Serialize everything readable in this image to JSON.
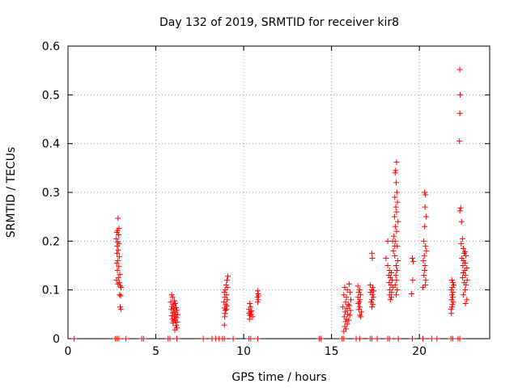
{
  "chart_data": {
    "type": "scatter",
    "title": "Day 132 of 2019, SRMTID for receiver kir8",
    "xlabel": "GPS time / hours",
    "ylabel": "SRMTID / TECUs",
    "xlim": [
      0,
      24
    ],
    "ylim": [
      0,
      0.6
    ],
    "xticks": [
      0,
      5,
      10,
      15,
      20
    ],
    "yticks": [
      0,
      0.1,
      0.2,
      0.3,
      0.4,
      0.5,
      0.6
    ],
    "xtick_labels": [
      "0",
      "5",
      "10",
      "15",
      "20"
    ],
    "ytick_labels": [
      "0",
      "0.1",
      "0.2",
      "0.3",
      "0.4",
      "0.5",
      "0.6"
    ],
    "grid": true,
    "marker": "+",
    "marker_color": "#ff0000",
    "series": [
      {
        "name": "SRMTID",
        "points": [
          [
            0.35,
            0
          ],
          [
            2.7,
            0
          ],
          [
            2.8,
            0
          ],
          [
            2.9,
            0
          ],
          [
            3.3,
            0
          ],
          [
            4.2,
            0
          ],
          [
            4.3,
            0
          ],
          [
            5.7,
            0
          ],
          [
            5.8,
            0
          ],
          [
            6.2,
            0
          ],
          [
            7.7,
            0
          ],
          [
            8.2,
            0
          ],
          [
            8.4,
            0
          ],
          [
            8.6,
            0
          ],
          [
            8.8,
            0
          ],
          [
            8.9,
            0
          ],
          [
            9.4,
            0
          ],
          [
            10.3,
            0
          ],
          [
            10.4,
            0
          ],
          [
            10.8,
            0
          ],
          [
            14.3,
            0
          ],
          [
            14.4,
            0
          ],
          [
            15.6,
            0
          ],
          [
            15.7,
            0
          ],
          [
            16.4,
            0
          ],
          [
            16.6,
            0
          ],
          [
            17.2,
            0
          ],
          [
            17.3,
            0
          ],
          [
            17.6,
            0
          ],
          [
            18.2,
            0
          ],
          [
            18.3,
            0
          ],
          [
            18.8,
            0
          ],
          [
            19.6,
            0
          ],
          [
            20.2,
            0
          ],
          [
            20.7,
            0
          ],
          [
            21.0,
            0
          ],
          [
            21.8,
            0
          ],
          [
            21.9,
            0
          ],
          [
            22.2,
            0
          ],
          [
            22.3,
            0
          ],
          [
            2.85,
            0.247
          ],
          [
            2.9,
            0.226
          ],
          [
            2.82,
            0.222
          ],
          [
            2.78,
            0.218
          ],
          [
            2.88,
            0.213
          ],
          [
            2.75,
            0.205
          ],
          [
            2.83,
            0.198
          ],
          [
            2.9,
            0.195
          ],
          [
            2.8,
            0.19
          ],
          [
            2.86,
            0.182
          ],
          [
            2.79,
            0.175
          ],
          [
            2.92,
            0.168
          ],
          [
            2.84,
            0.16
          ],
          [
            2.77,
            0.155
          ],
          [
            2.89,
            0.148
          ],
          [
            2.81,
            0.14
          ],
          [
            2.95,
            0.132
          ],
          [
            2.87,
            0.125
          ],
          [
            2.76,
            0.12
          ],
          [
            2.93,
            0.115
          ],
          [
            2.85,
            0.112
          ],
          [
            2.99,
            0.108
          ],
          [
            3.02,
            0.105
          ],
          [
            2.94,
            0.09
          ],
          [
            3.0,
            0.088
          ],
          [
            2.97,
            0.065
          ],
          [
            3.01,
            0.06
          ],
          [
            5.9,
            0.09
          ],
          [
            5.95,
            0.085
          ],
          [
            6.05,
            0.078
          ],
          [
            5.85,
            0.075
          ],
          [
            6.1,
            0.072
          ],
          [
            6.0,
            0.07
          ],
          [
            5.92,
            0.066
          ],
          [
            6.15,
            0.064
          ],
          [
            6.02,
            0.062
          ],
          [
            5.88,
            0.06
          ],
          [
            6.2,
            0.058
          ],
          [
            6.08,
            0.055
          ],
          [
            5.97,
            0.053
          ],
          [
            6.12,
            0.05
          ],
          [
            6.25,
            0.049
          ],
          [
            5.9,
            0.047
          ],
          [
            6.05,
            0.045
          ],
          [
            6.18,
            0.043
          ],
          [
            5.94,
            0.04
          ],
          [
            6.1,
            0.038
          ],
          [
            6.0,
            0.036
          ],
          [
            6.22,
            0.034
          ],
          [
            5.98,
            0.032
          ],
          [
            6.15,
            0.027
          ],
          [
            6.2,
            0.022
          ],
          [
            6.08,
            0.018
          ],
          [
            9.1,
            0.128
          ],
          [
            9.05,
            0.12
          ],
          [
            9.0,
            0.11
          ],
          [
            9.08,
            0.105
          ],
          [
            8.95,
            0.1
          ],
          [
            8.9,
            0.095
          ],
          [
            9.02,
            0.09
          ],
          [
            8.93,
            0.085
          ],
          [
            9.06,
            0.08
          ],
          [
            8.88,
            0.075
          ],
          [
            8.98,
            0.07
          ],
          [
            9.04,
            0.067
          ],
          [
            8.91,
            0.063
          ],
          [
            9.0,
            0.06
          ],
          [
            8.96,
            0.058
          ],
          [
            8.94,
            0.052
          ],
          [
            8.92,
            0.045
          ],
          [
            8.9,
            0.028
          ],
          [
            10.35,
            0.072
          ],
          [
            10.4,
            0.065
          ],
          [
            10.3,
            0.06
          ],
          [
            10.45,
            0.057
          ],
          [
            10.38,
            0.055
          ],
          [
            10.32,
            0.052
          ],
          [
            10.42,
            0.05
          ],
          [
            10.36,
            0.048
          ],
          [
            10.5,
            0.045
          ],
          [
            10.33,
            0.04
          ],
          [
            10.8,
            0.098
          ],
          [
            10.82,
            0.092
          ],
          [
            10.85,
            0.088
          ],
          [
            10.78,
            0.085
          ],
          [
            10.83,
            0.08
          ],
          [
            10.8,
            0.075
          ],
          [
            15.75,
            0.105
          ],
          [
            15.9,
            0.1
          ],
          [
            16.0,
            0.112
          ],
          [
            16.05,
            0.095
          ],
          [
            15.7,
            0.09
          ],
          [
            15.85,
            0.085
          ],
          [
            16.1,
            0.08
          ],
          [
            15.8,
            0.075
          ],
          [
            15.95,
            0.07
          ],
          [
            16.02,
            0.068
          ],
          [
            15.65,
            0.065
          ],
          [
            15.88,
            0.062
          ],
          [
            16.08,
            0.058
          ],
          [
            15.78,
            0.055
          ],
          [
            15.92,
            0.05
          ],
          [
            16.04,
            0.048
          ],
          [
            15.72,
            0.045
          ],
          [
            15.85,
            0.04
          ],
          [
            15.98,
            0.038
          ],
          [
            15.8,
            0.035
          ],
          [
            15.9,
            0.03
          ],
          [
            15.75,
            0.025
          ],
          [
            15.82,
            0.02
          ],
          [
            15.7,
            0.015
          ],
          [
            16.5,
            0.108
          ],
          [
            16.6,
            0.1
          ],
          [
            16.55,
            0.095
          ],
          [
            16.65,
            0.09
          ],
          [
            16.5,
            0.085
          ],
          [
            16.62,
            0.08
          ],
          [
            16.58,
            0.075
          ],
          [
            16.52,
            0.072
          ],
          [
            16.6,
            0.065
          ],
          [
            16.55,
            0.06
          ],
          [
            16.7,
            0.055
          ],
          [
            16.62,
            0.048
          ],
          [
            16.66,
            0.045
          ],
          [
            17.3,
            0.175
          ],
          [
            17.32,
            0.165
          ],
          [
            17.2,
            0.11
          ],
          [
            17.35,
            0.105
          ],
          [
            17.28,
            0.1
          ],
          [
            17.4,
            0.098
          ],
          [
            17.22,
            0.095
          ],
          [
            17.33,
            0.09
          ],
          [
            17.38,
            0.085
          ],
          [
            17.3,
            0.08
          ],
          [
            17.25,
            0.075
          ],
          [
            17.36,
            0.07
          ],
          [
            17.3,
            0.065
          ],
          [
            18.2,
            0.15
          ],
          [
            18.3,
            0.14
          ],
          [
            18.4,
            0.135
          ],
          [
            18.25,
            0.13
          ],
          [
            18.35,
            0.125
          ],
          [
            18.45,
            0.12
          ],
          [
            18.28,
            0.115
          ],
          [
            18.38,
            0.11
          ],
          [
            18.5,
            0.105
          ],
          [
            18.32,
            0.1
          ],
          [
            18.42,
            0.095
          ],
          [
            18.3,
            0.09
          ],
          [
            18.4,
            0.085
          ],
          [
            18.35,
            0.08
          ],
          [
            18.2,
            0.2
          ],
          [
            18.1,
            0.165
          ],
          [
            18.48,
            0.2
          ],
          [
            18.55,
            0.21
          ],
          [
            18.6,
            0.19
          ],
          [
            18.52,
            0.18
          ],
          [
            18.7,
            0.362
          ],
          [
            18.65,
            0.345
          ],
          [
            18.62,
            0.34
          ],
          [
            18.68,
            0.32
          ],
          [
            18.72,
            0.3
          ],
          [
            18.6,
            0.29
          ],
          [
            18.75,
            0.28
          ],
          [
            18.66,
            0.27
          ],
          [
            18.7,
            0.26
          ],
          [
            18.58,
            0.25
          ],
          [
            18.78,
            0.24
          ],
          [
            18.64,
            0.23
          ],
          [
            18.7,
            0.22
          ],
          [
            18.62,
            0.2
          ],
          [
            18.74,
            0.19
          ],
          [
            18.6,
            0.17
          ],
          [
            18.76,
            0.16
          ],
          [
            18.68,
            0.15
          ],
          [
            18.72,
            0.14
          ],
          [
            18.66,
            0.13
          ],
          [
            18.7,
            0.12
          ],
          [
            18.62,
            0.11
          ],
          [
            18.74,
            0.1
          ],
          [
            18.68,
            0.09
          ],
          [
            19.6,
            0.165
          ],
          [
            19.65,
            0.158
          ],
          [
            19.62,
            0.12
          ],
          [
            19.55,
            0.092
          ],
          [
            20.3,
            0.3
          ],
          [
            20.35,
            0.295
          ],
          [
            20.32,
            0.27
          ],
          [
            20.38,
            0.25
          ],
          [
            20.3,
            0.23
          ],
          [
            20.25,
            0.2
          ],
          [
            20.35,
            0.19
          ],
          [
            20.4,
            0.18
          ],
          [
            20.28,
            0.17
          ],
          [
            20.22,
            0.16
          ],
          [
            20.32,
            0.15
          ],
          [
            20.3,
            0.14
          ],
          [
            20.26,
            0.13
          ],
          [
            20.36,
            0.12
          ],
          [
            20.34,
            0.11
          ],
          [
            20.2,
            0.105
          ],
          [
            21.85,
            0.12
          ],
          [
            21.9,
            0.115
          ],
          [
            21.95,
            0.11
          ],
          [
            21.88,
            0.105
          ],
          [
            21.82,
            0.1
          ],
          [
            21.92,
            0.095
          ],
          [
            21.86,
            0.09
          ],
          [
            21.9,
            0.085
          ],
          [
            21.84,
            0.08
          ],
          [
            21.93,
            0.075
          ],
          [
            21.88,
            0.07
          ],
          [
            21.86,
            0.065
          ],
          [
            21.8,
            0.06
          ],
          [
            21.82,
            0.052
          ],
          [
            22.3,
            0.552
          ],
          [
            22.32,
            0.5
          ],
          [
            22.3,
            0.462
          ],
          [
            22.28,
            0.405
          ],
          [
            22.35,
            0.268
          ],
          [
            22.3,
            0.262
          ],
          [
            22.4,
            0.24
          ],
          [
            22.45,
            0.205
          ],
          [
            22.38,
            0.195
          ],
          [
            22.5,
            0.185
          ],
          [
            22.6,
            0.178
          ],
          [
            22.55,
            0.175
          ],
          [
            22.65,
            0.17
          ],
          [
            22.42,
            0.165
          ],
          [
            22.52,
            0.16
          ],
          [
            22.6,
            0.155
          ],
          [
            22.48,
            0.15
          ],
          [
            22.7,
            0.145
          ],
          [
            22.58,
            0.14
          ],
          [
            22.5,
            0.135
          ],
          [
            22.62,
            0.13
          ],
          [
            22.45,
            0.125
          ],
          [
            22.72,
            0.12
          ],
          [
            22.55,
            0.115
          ],
          [
            22.65,
            0.11
          ],
          [
            22.6,
            0.1
          ],
          [
            22.5,
            0.09
          ],
          [
            22.7,
            0.08
          ],
          [
            22.62,
            0.072
          ]
        ]
      }
    ]
  }
}
